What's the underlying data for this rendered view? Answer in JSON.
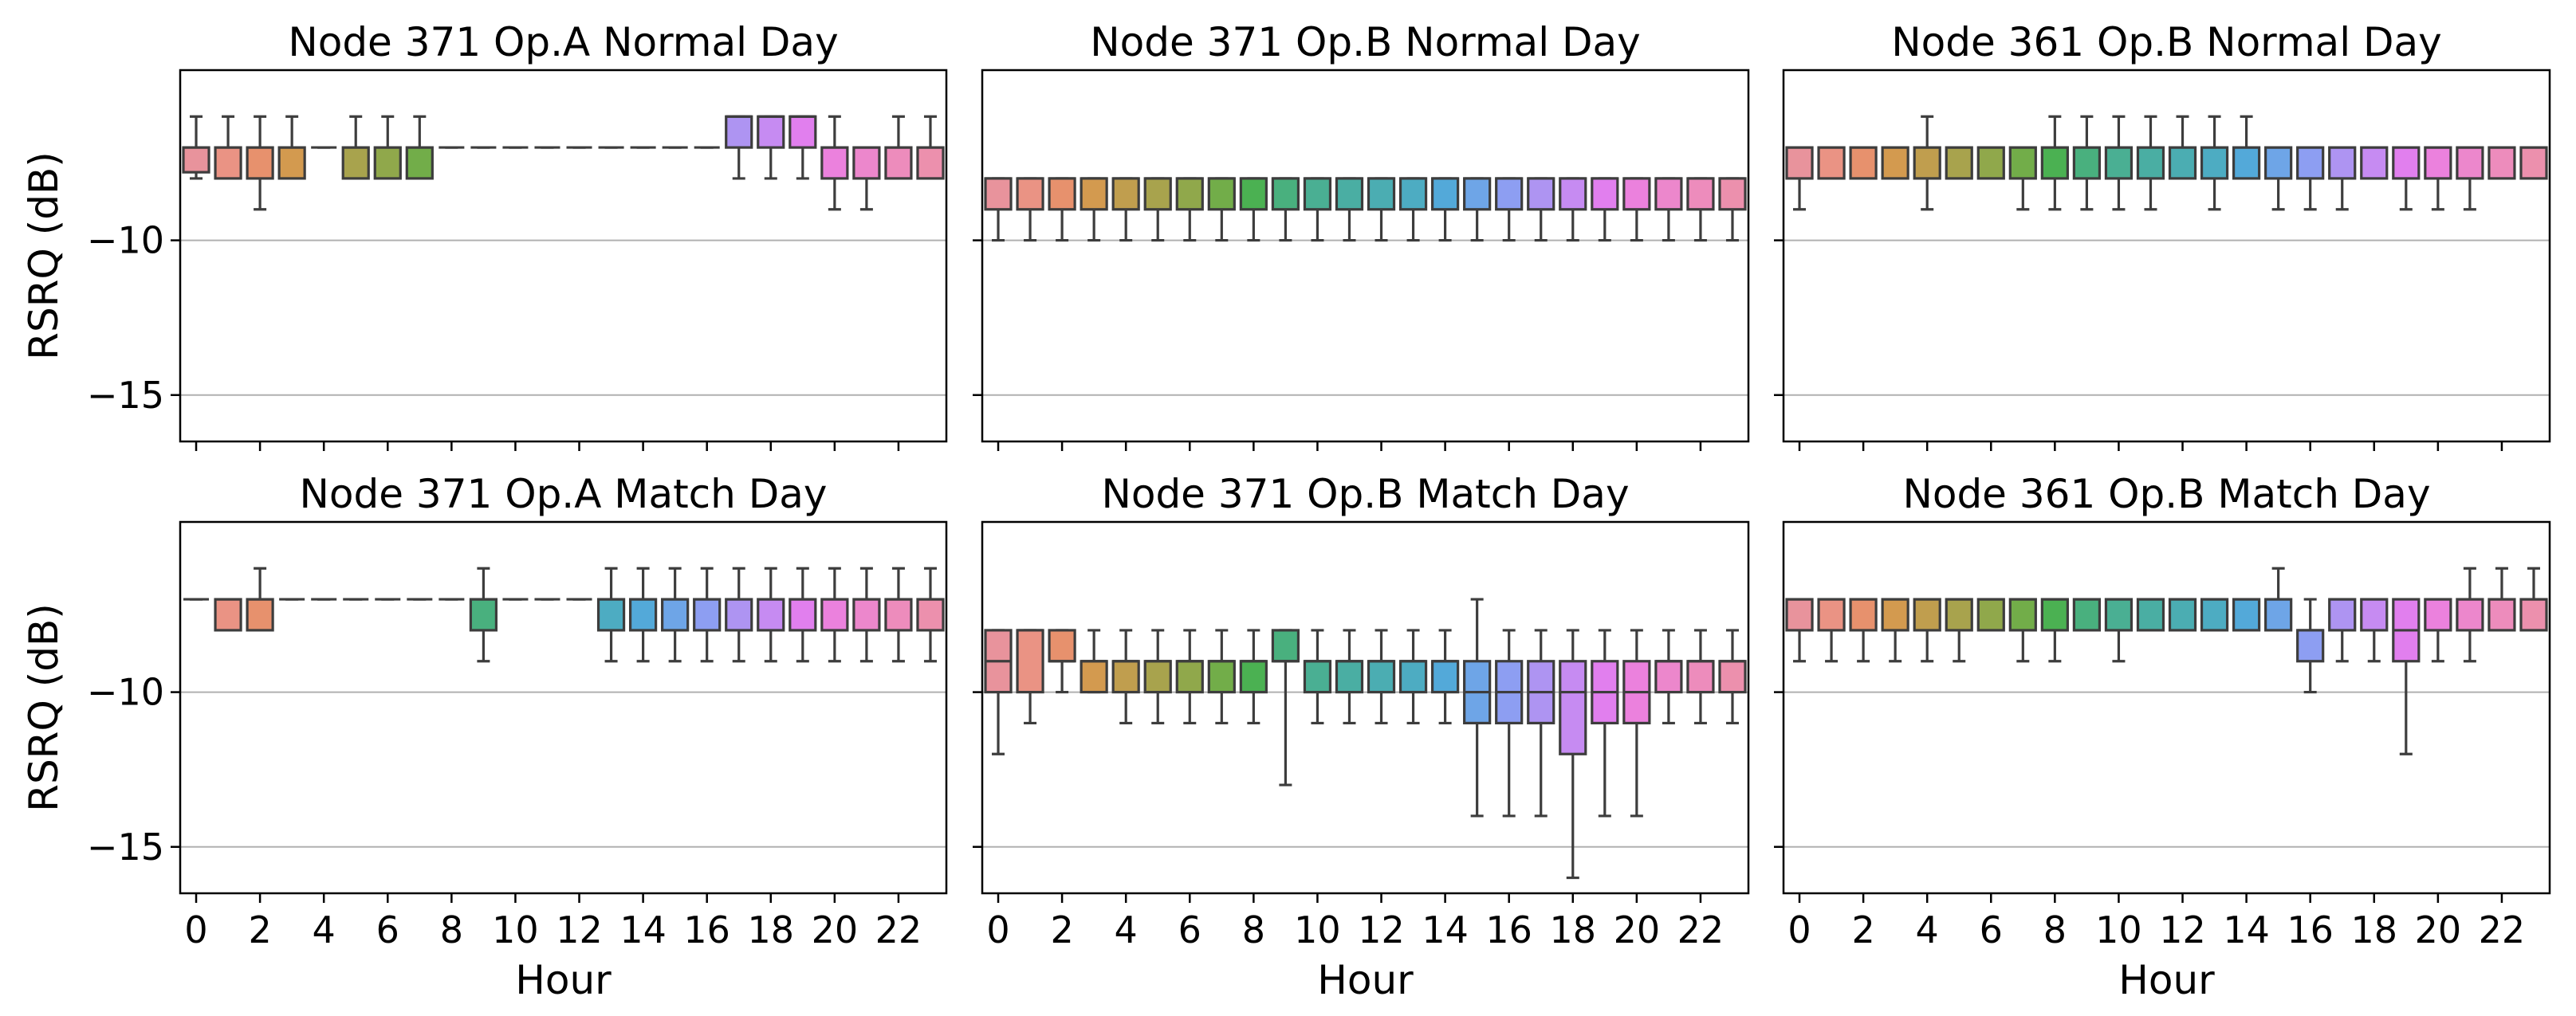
{
  "chart_data": [
    {
      "type": "box",
      "title": "Node 371 Op.A Normal Day",
      "xlabel": "",
      "ylabel": "RSRQ (dB)",
      "ylim": [
        -16.5,
        -4.5
      ],
      "yticks": [
        -10,
        -15
      ],
      "ytick_labels": [
        "−10",
        "−15"
      ],
      "xticks": [
        0,
        2,
        4,
        6,
        8,
        10,
        12,
        14,
        16,
        18,
        20,
        22
      ],
      "xtick_labels": [],
      "grid": "y",
      "x": [
        0,
        1,
        2,
        3,
        4,
        5,
        6,
        7,
        8,
        9,
        10,
        11,
        12,
        13,
        14,
        15,
        16,
        17,
        18,
        19,
        20,
        21,
        22,
        23
      ],
      "q1": [
        -7.8,
        -8,
        -8,
        -8,
        -7,
        -8,
        -8,
        -8,
        -7,
        -7,
        -7,
        -7,
        -7,
        -7,
        -7,
        -7,
        -7,
        -7,
        -7,
        -7,
        -8,
        -8,
        -8,
        -8
      ],
      "q3": [
        -7,
        -7,
        -7,
        -7,
        -7,
        -7,
        -7,
        -7,
        -7,
        -7,
        -7,
        -7,
        -7,
        -7,
        -7,
        -7,
        -7,
        -6,
        -6,
        -6,
        -7,
        -7,
        -7,
        -7
      ],
      "median": [
        -7,
        -7,
        -7,
        -7,
        -7,
        -7,
        -7,
        -7,
        -7,
        -7,
        -7,
        -7,
        -7,
        -7,
        -7,
        -7,
        -7,
        -6,
        -6,
        -6,
        -7,
        -7,
        -7,
        -7
      ],
      "whislo": [
        -8,
        -8,
        -9,
        -8,
        -7,
        -8,
        -8,
        -8,
        -7,
        -7,
        -7,
        -7,
        -7,
        -7,
        -7,
        -7,
        -7,
        -8,
        -8,
        -8,
        -9,
        -9,
        -8,
        -8
      ],
      "whishi": [
        -6,
        -6,
        -6,
        -6,
        -7,
        -6,
        -6,
        -6,
        -7,
        -7,
        -7,
        -7,
        -7,
        -7,
        -7,
        -7,
        -7,
        -6,
        -6,
        -6,
        -6,
        -7,
        -6,
        -6
      ]
    },
    {
      "type": "box",
      "title": "Node 371 Op.B Normal Day",
      "xlabel": "",
      "ylabel": "",
      "ylim": [
        -16.5,
        -4.5
      ],
      "yticks": [
        -10,
        -15
      ],
      "ytick_labels": [],
      "xticks": [
        0,
        2,
        4,
        6,
        8,
        10,
        12,
        14,
        16,
        18,
        20,
        22
      ],
      "xtick_labels": [],
      "grid": "y",
      "x": [
        0,
        1,
        2,
        3,
        4,
        5,
        6,
        7,
        8,
        9,
        10,
        11,
        12,
        13,
        14,
        15,
        16,
        17,
        18,
        19,
        20,
        21,
        22,
        23
      ],
      "q1": [
        -9,
        -9,
        -9,
        -9,
        -9,
        -9,
        -9,
        -9,
        -9,
        -9,
        -9,
        -9,
        -9,
        -9,
        -9,
        -9,
        -9,
        -9,
        -9,
        -9,
        -9,
        -9,
        -9,
        -9
      ],
      "q3": [
        -8,
        -8,
        -8,
        -8,
        -8,
        -8,
        -8,
        -8,
        -8,
        -8,
        -8,
        -8,
        -8,
        -8,
        -8,
        -8,
        -8,
        -8,
        -8,
        -8,
        -8,
        -8,
        -8,
        -8
      ],
      "median": [
        -8,
        -8,
        -8,
        -8,
        -8,
        -8,
        -8,
        -8,
        -8,
        -8,
        -8,
        -8,
        -8,
        -8,
        -8,
        -8,
        -8,
        -8,
        -8,
        -8,
        -8,
        -8,
        -8,
        -8
      ],
      "whislo": [
        -10,
        -10,
        -10,
        -10,
        -10,
        -10,
        -10,
        -10,
        -10,
        -10,
        -10,
        -10,
        -10,
        -10,
        -10,
        -10,
        -10,
        -10,
        -10,
        -10,
        -10,
        -10,
        -10,
        -10
      ],
      "whishi": [
        -8,
        -8,
        -8,
        -8,
        -8,
        -8,
        -8,
        -8,
        -8,
        -8,
        -8,
        -8,
        -8,
        -8,
        -8,
        -8,
        -8,
        -8,
        -8,
        -8,
        -8,
        -8,
        -8,
        -8
      ]
    },
    {
      "type": "box",
      "title": "Node 361 Op.B Normal Day",
      "xlabel": "",
      "ylabel": "",
      "ylim": [
        -16.5,
        -4.5
      ],
      "yticks": [
        -10,
        -15
      ],
      "ytick_labels": [],
      "xticks": [
        0,
        2,
        4,
        6,
        8,
        10,
        12,
        14,
        16,
        18,
        20,
        22
      ],
      "xtick_labels": [],
      "grid": "y",
      "x": [
        0,
        1,
        2,
        3,
        4,
        5,
        6,
        7,
        8,
        9,
        10,
        11,
        12,
        13,
        14,
        15,
        16,
        17,
        18,
        19,
        20,
        21,
        22,
        23
      ],
      "q1": [
        -8,
        -8,
        -8,
        -8,
        -8,
        -8,
        -8,
        -8,
        -8,
        -8,
        -8,
        -8,
        -8,
        -8,
        -8,
        -8,
        -8,
        -8,
        -8,
        -8,
        -8,
        -8,
        -8,
        -8
      ],
      "q3": [
        -7,
        -7,
        -7,
        -7,
        -7,
        -7,
        -7,
        -7,
        -7,
        -7,
        -7,
        -7,
        -7,
        -7,
        -7,
        -7,
        -7,
        -7,
        -7,
        -7,
        -7,
        -7,
        -7,
        -7
      ],
      "median": [
        -7,
        -7,
        -7,
        -7,
        -7,
        -7,
        -7,
        -7,
        -7,
        -7,
        -7,
        -7,
        -7,
        -7,
        -7,
        -7,
        -7,
        -7,
        -7,
        -7,
        -7,
        -7,
        -7,
        -7
      ],
      "whislo": [
        -9,
        -8,
        -8,
        -8,
        -9,
        -8,
        -8,
        -9,
        -9,
        -9,
        -9,
        -9,
        -8,
        -9,
        -8,
        -9,
        -9,
        -9,
        -8,
        -9,
        -9,
        -9,
        -8,
        -8
      ],
      "whishi": [
        -7,
        -7,
        -7,
        -7,
        -6,
        -7,
        -7,
        -7,
        -6,
        -6,
        -6,
        -6,
        -6,
        -6,
        -6,
        -7,
        -7,
        -7,
        -7,
        -7,
        -7,
        -7,
        -7,
        -7
      ]
    },
    {
      "type": "box",
      "title": "Node 371 Op.A Match Day",
      "xlabel": "Hour",
      "ylabel": "RSRQ (dB)",
      "ylim": [
        -16.5,
        -4.5
      ],
      "yticks": [
        -10,
        -15
      ],
      "ytick_labels": [
        "−10",
        "−15"
      ],
      "xticks": [
        0,
        2,
        4,
        6,
        8,
        10,
        12,
        14,
        16,
        18,
        20,
        22
      ],
      "xtick_labels": [
        "0",
        "2",
        "4",
        "6",
        "8",
        "10",
        "12",
        "14",
        "16",
        "18",
        "20",
        "22"
      ],
      "grid": "y",
      "x": [
        0,
        1,
        2,
        3,
        4,
        5,
        6,
        7,
        8,
        9,
        10,
        11,
        12,
        13,
        14,
        15,
        16,
        17,
        18,
        19,
        20,
        21,
        22,
        23
      ],
      "q1": [
        -7,
        -8,
        -8,
        -7,
        -7,
        -7,
        -7,
        -7,
        -7,
        -8,
        -7,
        -7,
        -7,
        -8,
        -8,
        -8,
        -8,
        -8,
        -8,
        -8,
        -8,
        -8,
        -8,
        -8
      ],
      "q3": [
        -7,
        -7,
        -7,
        -7,
        -7,
        -7,
        -7,
        -7,
        -7,
        -7,
        -7,
        -7,
        -7,
        -7,
        -7,
        -7,
        -7,
        -7,
        -7,
        -7,
        -7,
        -7,
        -7,
        -7
      ],
      "median": [
        -7,
        -7,
        -7,
        -7,
        -7,
        -7,
        -7,
        -7,
        -7,
        -7,
        -7,
        -7,
        -7,
        -7,
        -7,
        -7,
        -7,
        -7,
        -7,
        -7,
        -7,
        -7,
        -7,
        -7
      ],
      "whislo": [
        -7,
        -8,
        -8,
        -7,
        -7,
        -7,
        -7,
        -7,
        -7,
        -9,
        -7,
        -7,
        -7,
        -9,
        -9,
        -9,
        -9,
        -9,
        -9,
        -9,
        -9,
        -9,
        -9,
        -9
      ],
      "whishi": [
        -7,
        -7,
        -6,
        -7,
        -7,
        -7,
        -7,
        -7,
        -7,
        -6,
        -7,
        -7,
        -7,
        -6,
        -6,
        -6,
        -6,
        -6,
        -6,
        -6,
        -6,
        -6,
        -6,
        -6
      ]
    },
    {
      "type": "box",
      "title": "Node 371 Op.B Match Day",
      "xlabel": "Hour",
      "ylabel": "",
      "ylim": [
        -16.5,
        -4.5
      ],
      "yticks": [
        -10,
        -15
      ],
      "ytick_labels": [],
      "xticks": [
        0,
        2,
        4,
        6,
        8,
        10,
        12,
        14,
        16,
        18,
        20,
        22
      ],
      "xtick_labels": [
        "0",
        "2",
        "4",
        "6",
        "8",
        "10",
        "12",
        "14",
        "16",
        "18",
        "20",
        "22"
      ],
      "grid": "y",
      "x": [
        0,
        1,
        2,
        3,
        4,
        5,
        6,
        7,
        8,
        9,
        10,
        11,
        12,
        13,
        14,
        15,
        16,
        17,
        18,
        19,
        20,
        21,
        22,
        23
      ],
      "q1": [
        -10,
        -10,
        -9,
        -10,
        -10,
        -10,
        -10,
        -10,
        -10,
        -9,
        -10,
        -10,
        -10,
        -10,
        -10,
        -11,
        -11,
        -11,
        -12,
        -11,
        -11,
        -10,
        -10,
        -10
      ],
      "q3": [
        -8,
        -8,
        -8,
        -9,
        -9,
        -9,
        -9,
        -9,
        -9,
        -8,
        -9,
        -9,
        -9,
        -9,
        -9,
        -9,
        -9,
        -9,
        -9,
        -9,
        -9,
        -9,
        -9,
        -9
      ],
      "median": [
        -9,
        -8,
        -9,
        -9,
        -9,
        -9,
        -9,
        -9,
        -9,
        -9,
        -9,
        -9,
        -9,
        -9,
        -9,
        -10,
        -10,
        -10,
        -10,
        -10,
        -10,
        -9,
        -9,
        -9
      ],
      "whislo": [
        -12,
        -11,
        -10,
        -10,
        -11,
        -11,
        -11,
        -11,
        -11,
        -13,
        -11,
        -11,
        -11,
        -11,
        -11,
        -14,
        -14,
        -14,
        -16,
        -14,
        -14,
        -11,
        -11,
        -11
      ],
      "whishi": [
        -8,
        -8,
        -8,
        -8,
        -8,
        -8,
        -8,
        -8,
        -8,
        -8,
        -8,
        -8,
        -8,
        -8,
        -8,
        -7,
        -8,
        -8,
        -8,
        -8,
        -8,
        -8,
        -8,
        -8
      ]
    },
    {
      "type": "box",
      "title": "Node 361 Op.B Match Day",
      "xlabel": "Hour",
      "ylabel": "",
      "ylim": [
        -16.5,
        -4.5
      ],
      "yticks": [
        -10,
        -15
      ],
      "ytick_labels": [],
      "xticks": [
        0,
        2,
        4,
        6,
        8,
        10,
        12,
        14,
        16,
        18,
        20,
        22
      ],
      "xtick_labels": [
        "0",
        "2",
        "4",
        "6",
        "8",
        "10",
        "12",
        "14",
        "16",
        "18",
        "20",
        "22"
      ],
      "grid": "y",
      "x": [
        0,
        1,
        2,
        3,
        4,
        5,
        6,
        7,
        8,
        9,
        10,
        11,
        12,
        13,
        14,
        15,
        16,
        17,
        18,
        19,
        20,
        21,
        22,
        23
      ],
      "q1": [
        -8,
        -8,
        -8,
        -8,
        -8,
        -8,
        -8,
        -8,
        -8,
        -8,
        -8,
        -8,
        -8,
        -8,
        -8,
        -8,
        -9,
        -8,
        -8,
        -9,
        -8,
        -8,
        -8,
        -8
      ],
      "q3": [
        -7,
        -7,
        -7,
        -7,
        -7,
        -7,
        -7,
        -7,
        -7,
        -7,
        -7,
        -7,
        -7,
        -7,
        -7,
        -7,
        -8,
        -7,
        -7,
        -7,
        -7,
        -7,
        -7,
        -7
      ],
      "median": [
        -7,
        -7,
        -7,
        -7,
        -7,
        -7,
        -7,
        -7,
        -7,
        -7,
        -7,
        -7,
        -7,
        -7,
        -7,
        -7,
        -8,
        -7,
        -7,
        -8,
        -7,
        -7,
        -7,
        -7
      ],
      "whislo": [
        -9,
        -9,
        -9,
        -9,
        -9,
        -9,
        -8,
        -9,
        -9,
        -8,
        -9,
        -8,
        -8,
        -8,
        -8,
        -8,
        -10,
        -9,
        -9,
        -12,
        -9,
        -9,
        -8,
        -8
      ],
      "whishi": [
        -7,
        -7,
        -7,
        -7,
        -7,
        -7,
        -7,
        -7,
        -7,
        -7,
        -7,
        -7,
        -7,
        -7,
        -7,
        -6,
        -7,
        -7,
        -7,
        -7,
        -7,
        -6,
        -6,
        -6
      ]
    }
  ],
  "palette": [
    "#e8939c",
    "#ea9384",
    "#e7916d",
    "#d39a4f",
    "#c09e4e",
    "#a8a34d",
    "#90a84b",
    "#72ad49",
    "#4bb152",
    "#49b07e",
    "#4aaf93",
    "#4aaea3",
    "#4badb2",
    "#4dacc2",
    "#53a9d9",
    "#6ea5e7",
    "#8d9ef2",
    "#ae94f2",
    "#c68bf2",
    "#e17fee",
    "#eb81dd",
    "#ec87cc",
    "#ed8cbc",
    "#ec90ad"
  ]
}
